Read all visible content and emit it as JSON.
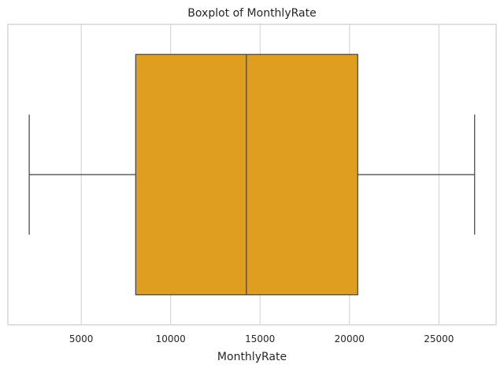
{
  "chart_data": {
    "type": "boxplot",
    "title": "Boxplot of MonthlyRate",
    "xlabel": "MonthlyRate",
    "ylabel": "",
    "xlim": [
      900,
      28200
    ],
    "xticks": [
      5000,
      10000,
      15000,
      20000,
      25000
    ],
    "grid": true,
    "orientation": "horizontal",
    "box": {
      "whisker_low": 2094,
      "q1": 8047,
      "median": 14236,
      "q3": 20462,
      "whisker_high": 26999
    },
    "colors": {
      "box_fill": "#E09E21",
      "line": "#404040",
      "grid": "#d0d0d0",
      "frame": "#cccccc"
    }
  }
}
